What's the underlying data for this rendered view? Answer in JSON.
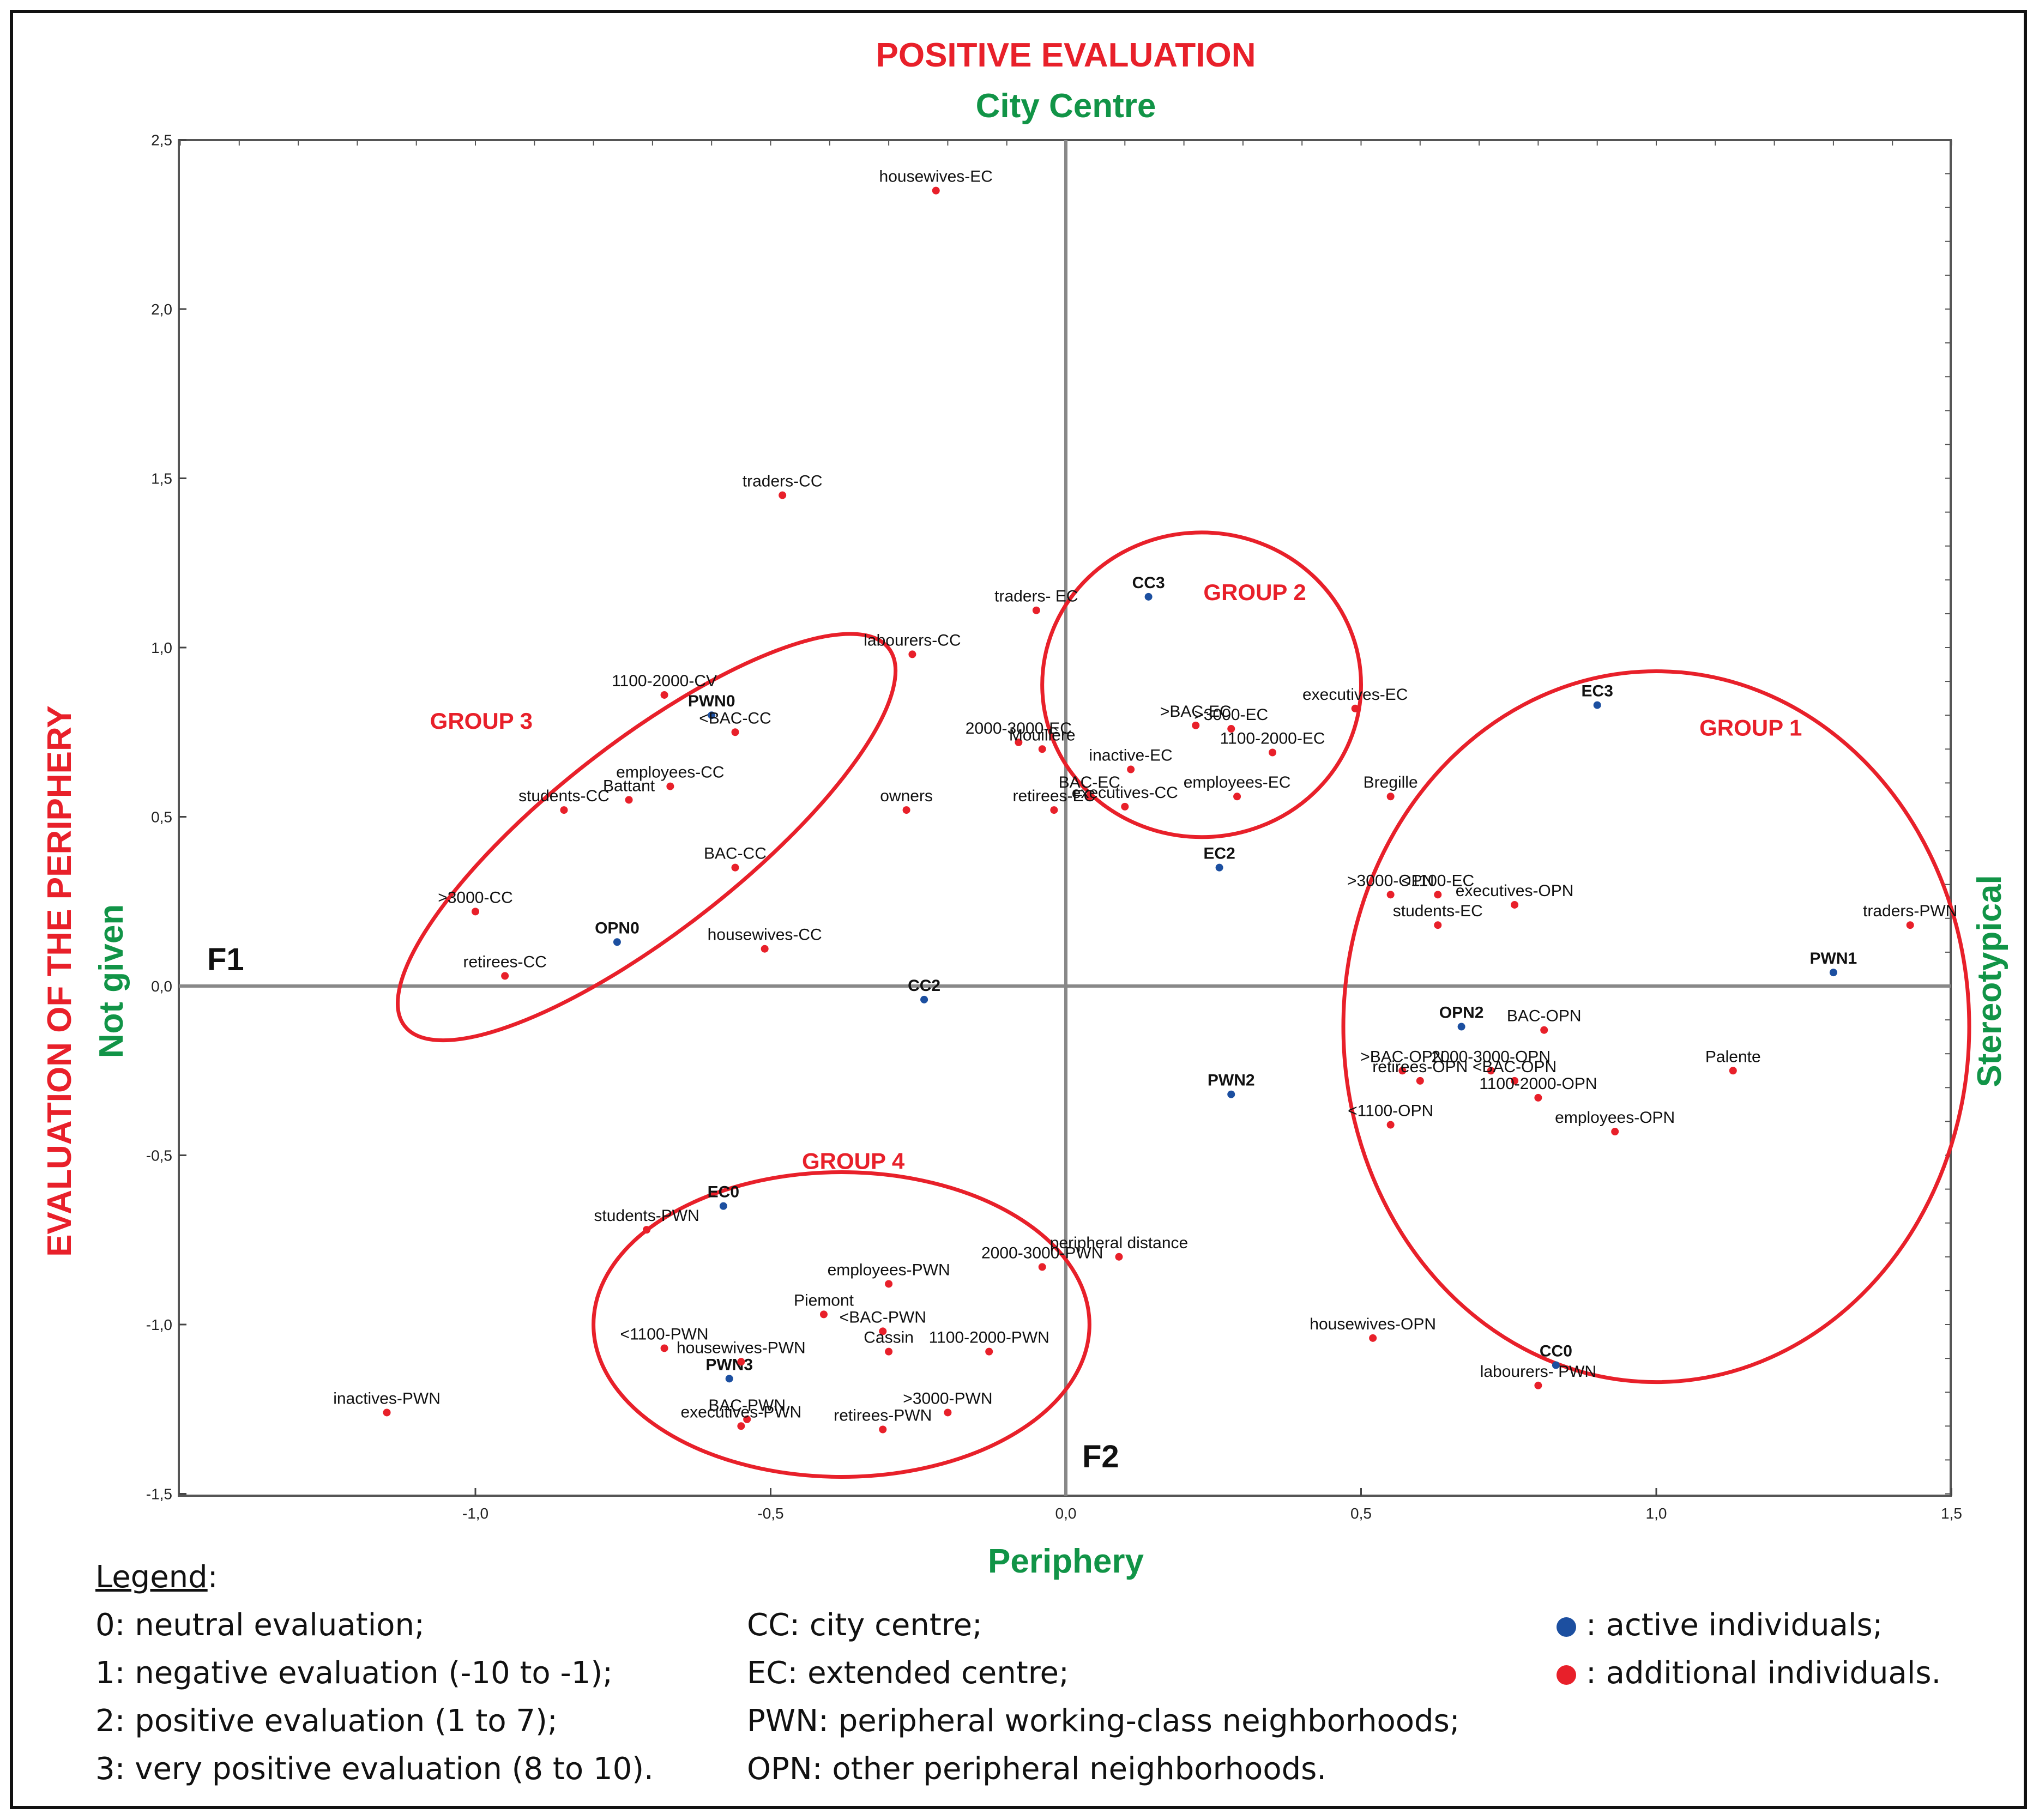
{
  "titles": {
    "top_red": "POSITIVE EVALUATION",
    "top_green": "City Centre",
    "bottom_green": "Periphery",
    "left_red": "EVALUATION OF THE PERIPHERY",
    "left_green": "Not given",
    "right_green": "Stereotypical"
  },
  "colors": {
    "active": "#1c4fa0",
    "additional": "#e8202a",
    "ellipse": "#e8202a",
    "green": "#119447"
  },
  "chart_data": {
    "type": "scatter",
    "title": "POSITIVE EVALUATION",
    "xlabel": "Periphery",
    "ylabel": "EVALUATION OF THE PERIPHERY",
    "xlim": [
      -1.5,
      1.5
    ],
    "ylim": [
      -1.5,
      2.5
    ],
    "x_ticks": [
      {
        "value": -1.0,
        "label": "-1,0"
      },
      {
        "value": -0.5,
        "label": "-0,5"
      },
      {
        "value": 0.0,
        "label": "0,0"
      },
      {
        "value": 0.5,
        "label": "0,5"
      },
      {
        "value": 1.0,
        "label": "1,0"
      },
      {
        "value": 1.5,
        "label": "1,5"
      }
    ],
    "y_ticks": [
      {
        "value": 2.5,
        "label": "2,5"
      },
      {
        "value": 2.0,
        "label": "2,0"
      },
      {
        "value": 1.5,
        "label": "1,5"
      },
      {
        "value": 1.0,
        "label": "1,0"
      },
      {
        "value": 0.5,
        "label": "0,5"
      },
      {
        "value": 0.0,
        "label": "0,0"
      },
      {
        "value": -0.5,
        "label": "-0,5"
      },
      {
        "value": -1.0,
        "label": "-1,0"
      },
      {
        "value": -1.5,
        "label": "-1,5"
      }
    ],
    "axis_names": {
      "f1": "F1",
      "f2": "F2"
    },
    "series": [
      {
        "name": "active individuals",
        "points": [
          {
            "label": "CC3",
            "x": 0.14,
            "y": 1.15
          },
          {
            "label": "EC3",
            "x": 0.9,
            "y": 0.83
          },
          {
            "label": "PWN0",
            "x": -0.6,
            "y": 0.8
          },
          {
            "label": "EC2",
            "x": 0.26,
            "y": 0.35
          },
          {
            "label": "OPN0",
            "x": -0.76,
            "y": 0.13
          },
          {
            "label": "PWN1",
            "x": 1.3,
            "y": 0.04
          },
          {
            "label": "CC2",
            "x": -0.24,
            "y": -0.04
          },
          {
            "label": "OPN2",
            "x": 0.67,
            "y": -0.12
          },
          {
            "label": "PWN2",
            "x": 0.28,
            "y": -0.32
          },
          {
            "label": "EC0",
            "x": -0.58,
            "y": -0.65
          },
          {
            "label": "PWN3",
            "x": -0.57,
            "y": -1.16
          },
          {
            "label": "CC0",
            "x": 0.83,
            "y": -1.12
          }
        ]
      },
      {
        "name": "additional individuals",
        "points": [
          {
            "label": "housewives-EC",
            "x": -0.22,
            "y": 2.35
          },
          {
            "label": "traders-CC",
            "x": -0.48,
            "y": 1.45
          },
          {
            "label": "traders- EC",
            "x": -0.05,
            "y": 1.11
          },
          {
            "label": "labourers-CC",
            "x": -0.26,
            "y": 0.98
          },
          {
            "label": "1100-2000-CV",
            "x": -0.68,
            "y": 0.86
          },
          {
            "label": "<BAC-CC",
            "x": -0.56,
            "y": 0.75
          },
          {
            "label": "executives-EC",
            "x": 0.49,
            "y": 0.82
          },
          {
            "label": ">BAC-EC",
            "x": 0.22,
            "y": 0.77
          },
          {
            "label": ">3000-EC",
            "x": 0.28,
            "y": 0.76
          },
          {
            "label": "2000-3000-EC",
            "x": -0.08,
            "y": 0.72
          },
          {
            "label": "Mouillère",
            "x": -0.04,
            "y": 0.7
          },
          {
            "label": "1100-2000-EC",
            "x": 0.35,
            "y": 0.69
          },
          {
            "label": "inactive-EC",
            "x": 0.11,
            "y": 0.64
          },
          {
            "label": "employees-CC",
            "x": -0.67,
            "y": 0.59
          },
          {
            "label": "Battant",
            "x": -0.74,
            "y": 0.55
          },
          {
            "label": "students-CC",
            "x": -0.85,
            "y": 0.52
          },
          {
            "label": "owners",
            "x": -0.27,
            "y": 0.52
          },
          {
            "label": "BAC-EC",
            "x": 0.04,
            "y": 0.56
          },
          {
            "label": "employees-EC",
            "x": 0.29,
            "y": 0.56
          },
          {
            "label": "Bregille",
            "x": 0.55,
            "y": 0.56
          },
          {
            "label": "retirees-EC",
            "x": -0.02,
            "y": 0.52
          },
          {
            "label": "executives-CC",
            "x": 0.1,
            "y": 0.53
          },
          {
            "label": "BAC-CC",
            "x": -0.56,
            "y": 0.35
          },
          {
            "label": ">3000-OPN",
            "x": 0.55,
            "y": 0.27
          },
          {
            "label": "<1100-EC",
            "x": 0.63,
            "y": 0.27
          },
          {
            "label": "executives-OPN",
            "x": 0.76,
            "y": 0.24
          },
          {
            "label": ">3000-CC",
            "x": -1.0,
            "y": 0.22
          },
          {
            "label": "traders-PWN",
            "x": 1.43,
            "y": 0.18
          },
          {
            "label": "students-EC",
            "x": 0.63,
            "y": 0.18
          },
          {
            "label": "housewives-CC",
            "x": -0.51,
            "y": 0.11
          },
          {
            "label": "retirees-CC",
            "x": -0.95,
            "y": 0.03
          },
          {
            "label": "BAC-OPN",
            "x": 0.81,
            "y": -0.13
          },
          {
            "label": "Palente",
            "x": 1.13,
            "y": -0.25
          },
          {
            "label": ">BAC-OPN",
            "x": 0.57,
            "y": -0.25
          },
          {
            "label": "2000-3000-OPN",
            "x": 0.72,
            "y": -0.25
          },
          {
            "label": "<BAC-OPN",
            "x": 0.76,
            "y": -0.28
          },
          {
            "label": "retirees-OPN",
            "x": 0.6,
            "y": -0.28
          },
          {
            "label": "1100-2000-OPN",
            "x": 0.8,
            "y": -0.33
          },
          {
            "label": "employees-OPN",
            "x": 0.93,
            "y": -0.43
          },
          {
            "label": "<1100-OPN",
            "x": 0.55,
            "y": -0.41
          },
          {
            "label": "students-PWN",
            "x": -0.71,
            "y": -0.72
          },
          {
            "label": "peripheral distance",
            "x": 0.09,
            "y": -0.8
          },
          {
            "label": "2000-3000-PWN",
            "x": -0.04,
            "y": -0.83
          },
          {
            "label": "employees-PWN",
            "x": -0.3,
            "y": -0.88
          },
          {
            "label": "Piemont",
            "x": -0.41,
            "y": -0.97
          },
          {
            "label": "<BAC-PWN",
            "x": -0.31,
            "y": -1.02
          },
          {
            "label": "1100-2000-PWN",
            "x": -0.13,
            "y": -1.08
          },
          {
            "label": "<1100-PWN",
            "x": -0.68,
            "y": -1.07
          },
          {
            "label": "housewives-PWN",
            "x": -0.55,
            "y": -1.11
          },
          {
            "label": "Cassin",
            "x": -0.3,
            "y": -1.08
          },
          {
            "label": "housewives-OPN",
            "x": 0.52,
            "y": -1.04
          },
          {
            "label": "labourers- PWN",
            "x": 0.8,
            "y": -1.18
          },
          {
            "label": "inactives-PWN",
            "x": -1.15,
            "y": -1.26
          },
          {
            "label": ">3000-PWN",
            "x": -0.2,
            "y": -1.26
          },
          {
            "label": "BAC-PWN",
            "x": -0.54,
            "y": -1.28
          },
          {
            "label": "executives-PWN",
            "x": -0.55,
            "y": -1.3
          },
          {
            "label": "retirees-PWN",
            "x": -0.31,
            "y": -1.31
          }
        ]
      }
    ],
    "groups": [
      {
        "label": "GROUP 1",
        "cx": 1.0,
        "cy": -0.12,
        "rx": 0.53,
        "ry": 1.05,
        "angle": 0
      },
      {
        "label": "GROUP 2",
        "cx": 0.23,
        "cy": 0.89,
        "rx": 0.27,
        "ry": 0.45,
        "angle": 0
      },
      {
        "label": "GROUP 3",
        "cx": -0.71,
        "cy": 0.44,
        "rx": 0.52,
        "ry": 0.28,
        "angle": -38
      },
      {
        "label": "GROUP 4",
        "cx": -0.38,
        "cy": -1.0,
        "rx": 0.42,
        "ry": 0.45,
        "angle": 0
      }
    ]
  },
  "legend": {
    "title": "Legend",
    "title_suffix": ":",
    "col1": [
      "0: neutral evaluation;",
      "1: negative evaluation (-10 to -1);",
      "2: positive evaluation (1 to 7);",
      "3: very positive evaluation (8 to 10)."
    ],
    "col2": [
      "CC: city centre;",
      "EC: extended centre;",
      "PWN: peripheral working-class neighborhoods;",
      "OPN: other peripheral neighborhoods."
    ],
    "col3": [
      ": active individuals;",
      ": additional individuals."
    ]
  }
}
